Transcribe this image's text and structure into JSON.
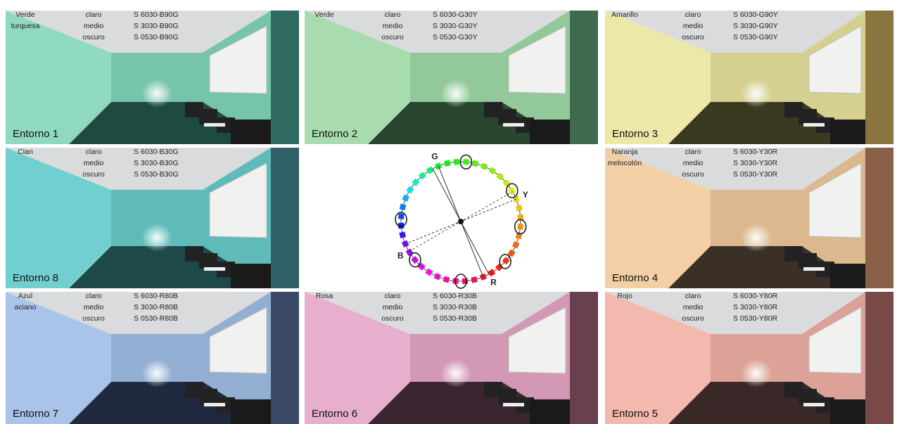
{
  "panels": [
    {
      "name": [
        "Verde",
        "turquesa"
      ],
      "shades": [
        "claro",
        "medio",
        "oscuro"
      ],
      "codes": [
        "S 6030-B90G",
        "S 3030-B90G",
        "S 0530-B90G"
      ],
      "label": "Entorno 1"
    },
    {
      "name": [
        "Verde"
      ],
      "shades": [
        "claro",
        "medio",
        "oscuro"
      ],
      "codes": [
        "S 6030-G30Y",
        "S 3030-G30Y",
        "S 0530-G30Y"
      ],
      "label": "Entorno 2"
    },
    {
      "name": [
        "Amarillo"
      ],
      "shades": [
        "claro",
        "medio",
        "oscuro"
      ],
      "codes": [
        "S 6030-G90Y",
        "S 3030-G90Y",
        "S 0530-G90Y"
      ],
      "label": "Entorno 3"
    },
    {
      "name": [
        "Cian"
      ],
      "shades": [
        "claro",
        "medio",
        "oscuro"
      ],
      "codes": [
        "S 6030-B30G",
        "S 3030-B30G",
        "S 0530-B30G"
      ],
      "label": "Entorno 8"
    },
    {
      "name": [
        "Naranja",
        "melocotón"
      ],
      "shades": [
        "claro",
        "medio",
        "oscuro"
      ],
      "codes": [
        "S 6030-Y30R",
        "S 3030-Y30R",
        "S 0530-Y30R"
      ],
      "label": "Entorno 4"
    },
    {
      "name": [
        "Azul",
        "aciano"
      ],
      "shades": [
        "claro",
        "medio",
        "oscuro"
      ],
      "codes": [
        "S 6030-R80B",
        "S 3030-R80B",
        "S 0530-R80B"
      ],
      "label": "Entorno 7"
    },
    {
      "name": [
        "Rosa"
      ],
      "shades": [
        "claro",
        "medio",
        "oscuro"
      ],
      "codes": [
        "S 6030-R30B",
        "S 3030-R30B",
        "S 0530-R30B"
      ],
      "label": "Entorno 6"
    },
    {
      "name": [
        "Rojo"
      ],
      "shades": [
        "claro",
        "medio",
        "oscuro"
      ],
      "codes": [
        "S 6030-Y80R",
        "S 3030-Y80R",
        "S 0530-Y80R"
      ],
      "label": "Entorno 5"
    }
  ],
  "wheel": {
    "letters": [
      "G",
      "Y",
      "R",
      "B"
    ]
  }
}
